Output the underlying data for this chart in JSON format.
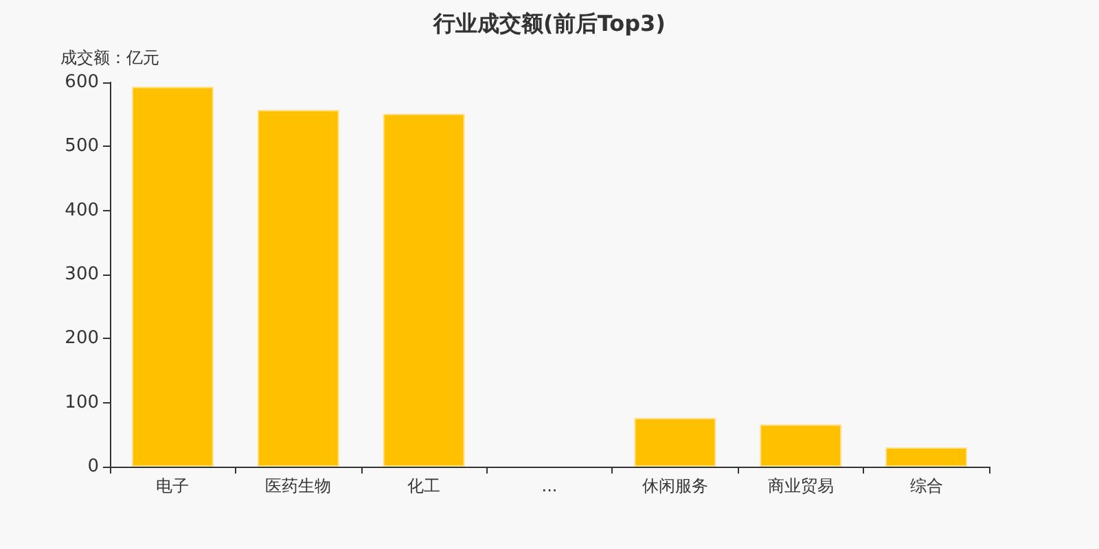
{
  "chart_data": {
    "type": "bar",
    "title": "行业成交额(前后Top3)",
    "ylabel": "成交额：亿元",
    "categories": [
      "电子",
      "医药生物",
      "化工",
      "...",
      "休闲服务",
      "商业贸易",
      "综合"
    ],
    "values": [
      593,
      557,
      551,
      null,
      76,
      66,
      30
    ],
    "color": "#ffc000",
    "ylim": [
      0,
      600
    ],
    "yticks": [
      0,
      100,
      200,
      300,
      400,
      500,
      600
    ],
    "grid": false
  }
}
